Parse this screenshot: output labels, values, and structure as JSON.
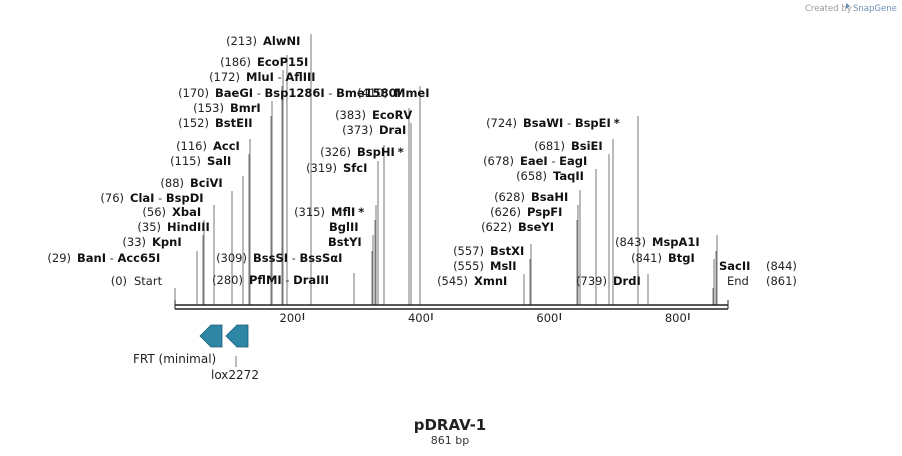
{
  "title": "pDRAV-1",
  "length_label": "861 bp",
  "credit": "Created by",
  "credit_brand": "SnapGene",
  "sequence_length": 861,
  "axis_ticks": [
    200,
    400,
    600,
    800
  ],
  "ends": {
    "start": {
      "name": "Start",
      "pos": 0,
      "pos_label": "(0)"
    },
    "end": {
      "name": "End",
      "pos": 861,
      "pos_label": "(861)"
    }
  },
  "sites": [
    {
      "pos": 213,
      "label": "(213)",
      "names": [
        "AlwNI"
      ]
    },
    {
      "pos": 186,
      "label": "(186)",
      "names": [
        "EcoP15I"
      ]
    },
    {
      "pos": 172,
      "label": "(172)",
      "names": [
        "MluI",
        "AflIII"
      ]
    },
    {
      "pos": 170,
      "label": "(170)",
      "names": [
        "BaeGI",
        "Bsp1286I",
        "Bme1580I"
      ]
    },
    {
      "pos": 153,
      "label": "(153)",
      "names": [
        "BmrI"
      ]
    },
    {
      "pos": 152,
      "label": "(152)",
      "names": [
        "BstEII"
      ]
    },
    {
      "pos": 116,
      "label": "(116)",
      "names": [
        "AccI"
      ]
    },
    {
      "pos": 115,
      "label": "(115)",
      "names": [
        "SalI"
      ]
    },
    {
      "pos": 88,
      "label": "(88)",
      "names": [
        "BciVI"
      ]
    },
    {
      "pos": 76,
      "label": "(76)",
      "names": [
        "ClaI",
        "BspDI"
      ]
    },
    {
      "pos": 56,
      "label": "(56)",
      "names": [
        "XbaI"
      ]
    },
    {
      "pos": 35,
      "label": "(35)",
      "names": [
        "HindIII"
      ]
    },
    {
      "pos": 33,
      "label": "(33)",
      "names": [
        "KpnI"
      ]
    },
    {
      "pos": 29,
      "label": "(29)",
      "names": [
        "BanI",
        "Acc65I"
      ]
    },
    {
      "pos": 410,
      "label": "(410)",
      "names": [
        "MmeI"
      ]
    },
    {
      "pos": 383,
      "label": "(383)",
      "names": [
        "EcoRV"
      ]
    },
    {
      "pos": 373,
      "label": "(373)",
      "names": [
        "DraI"
      ]
    },
    {
      "pos": 326,
      "label": "(326)",
      "names": [
        "BspHI"
      ],
      "star": "*"
    },
    {
      "pos": 319,
      "label": "(319)",
      "names": [
        "SfcI"
      ]
    },
    {
      "pos": 315,
      "label": "(315)",
      "names": [
        "MflI"
      ],
      "star": "*"
    },
    {
      "pos": 315,
      "label": "",
      "names": [
        "BglII"
      ]
    },
    {
      "pos": 315,
      "label": "",
      "names": [
        "BstYI"
      ]
    },
    {
      "pos": 309,
      "label": "(309)",
      "names": [
        "BssSI",
        "BssSαI"
      ]
    },
    {
      "pos": 280,
      "label": "(280)",
      "names": [
        "PflMI",
        "DraIII"
      ]
    },
    {
      "pos": 724,
      "label": "(724)",
      "names": [
        "BsaWI",
        "BspEI"
      ],
      "star": "*"
    },
    {
      "pos": 681,
      "label": "(681)",
      "names": [
        "BsiEI"
      ]
    },
    {
      "pos": 678,
      "label": "(678)",
      "names": [
        "EaeI",
        "EagI"
      ]
    },
    {
      "pos": 658,
      "label": "(658)",
      "names": [
        "TaqII"
      ]
    },
    {
      "pos": 628,
      "label": "(628)",
      "names": [
        "BsaHI"
      ]
    },
    {
      "pos": 626,
      "label": "(626)",
      "names": [
        "PspFI"
      ]
    },
    {
      "pos": 622,
      "label": "(622)",
      "names": [
        "BseYI"
      ]
    },
    {
      "pos": 557,
      "label": "(557)",
      "names": [
        "BstXI"
      ]
    },
    {
      "pos": 555,
      "label": "(555)",
      "names": [
        "MslI"
      ]
    },
    {
      "pos": 545,
      "label": "(545)",
      "names": [
        "XmnI"
      ]
    },
    {
      "pos": 739,
      "label": "(739)",
      "names": [
        "DrdI"
      ]
    },
    {
      "pos": 843,
      "label": "(843)",
      "names": [
        "MspA1I"
      ]
    },
    {
      "pos": 841,
      "label": "(841)",
      "names": [
        "BtgI"
      ]
    },
    {
      "pos": 844,
      "label": "(844)",
      "names": [
        "SacII"
      ]
    }
  ],
  "features": [
    {
      "name": "FRT (minimal)",
      "direction": "reverse",
      "color": "#2e86a6"
    },
    {
      "name": "lox2272",
      "direction": "reverse",
      "color": "#2e86a6"
    }
  ],
  "colors": {
    "backbone": "#222222",
    "line": "#555555",
    "feature": "#2e86a6",
    "brand": "#6d8fb3"
  }
}
